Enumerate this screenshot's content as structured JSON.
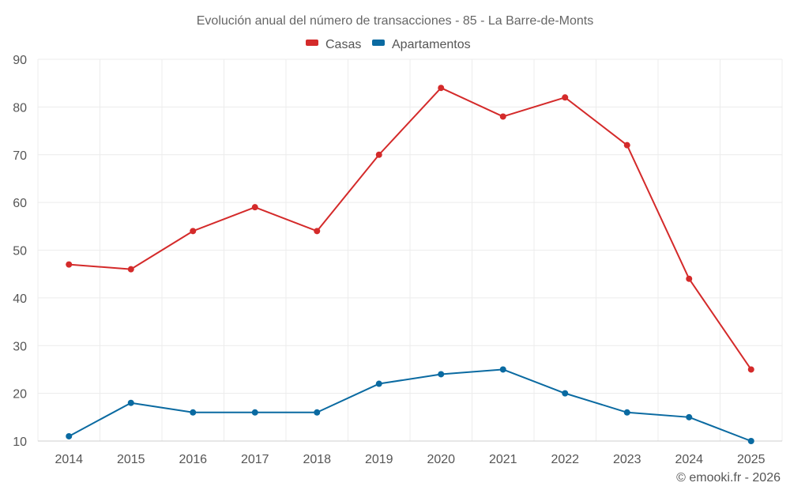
{
  "chart_data": {
    "type": "line",
    "title": "Evolución anual del número de transacciones - 85 - La Barre-de-Monts",
    "categories": [
      "2014",
      "2015",
      "2016",
      "2017",
      "2018",
      "2019",
      "2020",
      "2021",
      "2022",
      "2023",
      "2024",
      "2025"
    ],
    "series": [
      {
        "name": "Casas",
        "color": "#d42a2a",
        "values": [
          47,
          46,
          54,
          59,
          54,
          70,
          84,
          78,
          82,
          72,
          44,
          25
        ]
      },
      {
        "name": "Apartamentos",
        "color": "#0a6aa1",
        "values": [
          11,
          18,
          16,
          16,
          16,
          22,
          24,
          25,
          20,
          16,
          15,
          10
        ]
      }
    ],
    "ylim": [
      10,
      90
    ],
    "yticks": [
      10,
      20,
      30,
      40,
      50,
      60,
      70,
      80,
      90
    ],
    "xlabel": "",
    "ylabel": "",
    "grid": true,
    "legend_position": "top-center"
  },
  "credit": "© emooki.fr - 2026"
}
